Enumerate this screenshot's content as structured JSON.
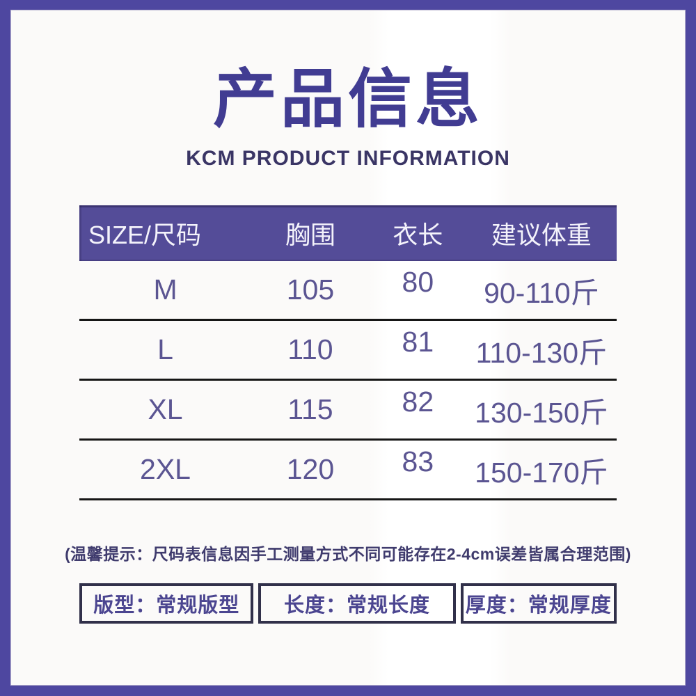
{
  "page": {
    "title": "产品信息",
    "subtitle": "KCM PRODUCT INFORMATION"
  },
  "size_table": {
    "columns": [
      "SIZE/尺码",
      "胸围",
      "衣长",
      "建议体重"
    ],
    "rows": [
      {
        "size": "M",
        "chest": "105",
        "length": "80",
        "weight": "90-110斤"
      },
      {
        "size": "L",
        "chest": "110",
        "length": "81",
        "weight": "110-130斤"
      },
      {
        "size": "XL",
        "chest": "115",
        "length": "82",
        "weight": "130-150斤"
      },
      {
        "size": "2XL",
        "chest": "120",
        "length": "83",
        "weight": "150-170斤"
      }
    ]
  },
  "note": {
    "text": "(温馨提示：尺码表信息因手工测量方式不同可能存在2-4cm误差皆属合理范围)"
  },
  "attributes": [
    {
      "label": "版型：常规版型"
    },
    {
      "label": "长度：常规长度"
    },
    {
      "label": "厚度：常规厚度"
    }
  ],
  "colors": {
    "frame_purple": "#4e47a0",
    "table_header_bg": "#544c98",
    "title_text": "#413c92",
    "subtitle_text": "#3a3565",
    "body_text": "#5b5592",
    "note_text": "#3f3b6d",
    "attr_border": "#31304a",
    "row_divider": "#161616",
    "card_bg": "#fbfaf9"
  }
}
